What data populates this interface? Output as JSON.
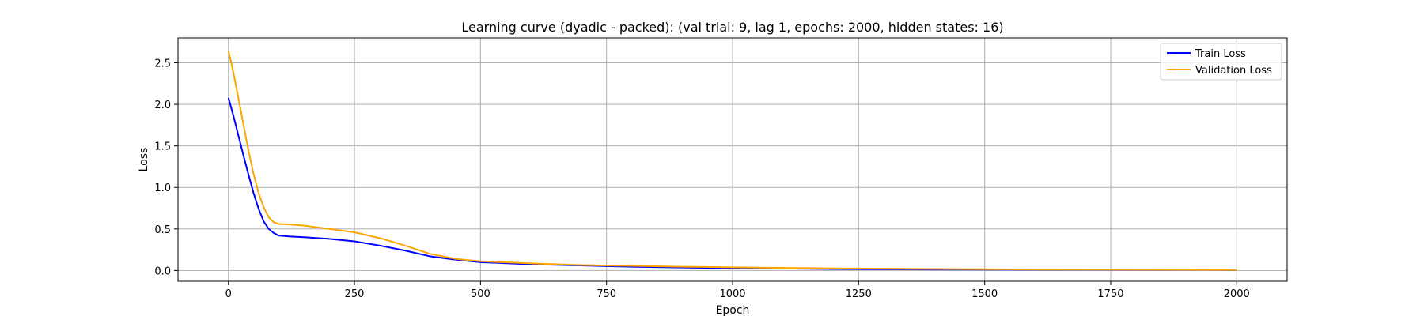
{
  "chart_data": {
    "type": "line",
    "title": "Learning curve (dyadic - packed): (val trial: 9, lag 1, epochs: 2000, hidden states: 16)",
    "xlabel": "Epoch",
    "ylabel": "Loss",
    "xlim": [
      -100,
      2100
    ],
    "ylim": [
      -0.13,
      2.8
    ],
    "xticks": [
      0,
      250,
      500,
      750,
      1000,
      1250,
      1500,
      1750,
      2000
    ],
    "yticks": [
      0.0,
      0.5,
      1.0,
      1.5,
      2.0,
      2.5
    ],
    "xtick_labels": [
      "0",
      "250",
      "500",
      "750",
      "1000",
      "1250",
      "1500",
      "1750",
      "2000"
    ],
    "ytick_labels": [
      "0.0",
      "0.5",
      "1.0",
      "1.5",
      "2.0",
      "2.5"
    ],
    "grid": true,
    "legend_position": "top-right",
    "series": [
      {
        "name": "Train Loss",
        "color": "#0000ff",
        "x": [
          0,
          10,
          20,
          30,
          40,
          50,
          60,
          70,
          80,
          90,
          100,
          120,
          150,
          200,
          250,
          300,
          350,
          400,
          450,
          500,
          600,
          700,
          800,
          900,
          1000,
          1200,
          1400,
          1600,
          1800,
          2000
        ],
        "y": [
          2.08,
          1.86,
          1.62,
          1.38,
          1.15,
          0.93,
          0.74,
          0.59,
          0.5,
          0.45,
          0.42,
          0.41,
          0.4,
          0.38,
          0.35,
          0.3,
          0.24,
          0.17,
          0.13,
          0.1,
          0.075,
          0.06,
          0.045,
          0.035,
          0.028,
          0.018,
          0.012,
          0.009,
          0.007,
          0.006
        ]
      },
      {
        "name": "Validation Loss",
        "color": "#ffa500",
        "x": [
          0,
          10,
          20,
          30,
          40,
          50,
          60,
          70,
          80,
          90,
          100,
          120,
          150,
          200,
          250,
          300,
          350,
          400,
          450,
          500,
          600,
          700,
          800,
          900,
          1000,
          1200,
          1400,
          1600,
          1800,
          2000
        ],
        "y": [
          2.65,
          2.38,
          2.07,
          1.75,
          1.44,
          1.16,
          0.93,
          0.76,
          0.64,
          0.58,
          0.56,
          0.555,
          0.54,
          0.5,
          0.46,
          0.39,
          0.3,
          0.2,
          0.14,
          0.11,
          0.085,
          0.065,
          0.055,
          0.045,
          0.038,
          0.025,
          0.017,
          0.012,
          0.009,
          0.007
        ]
      }
    ]
  }
}
